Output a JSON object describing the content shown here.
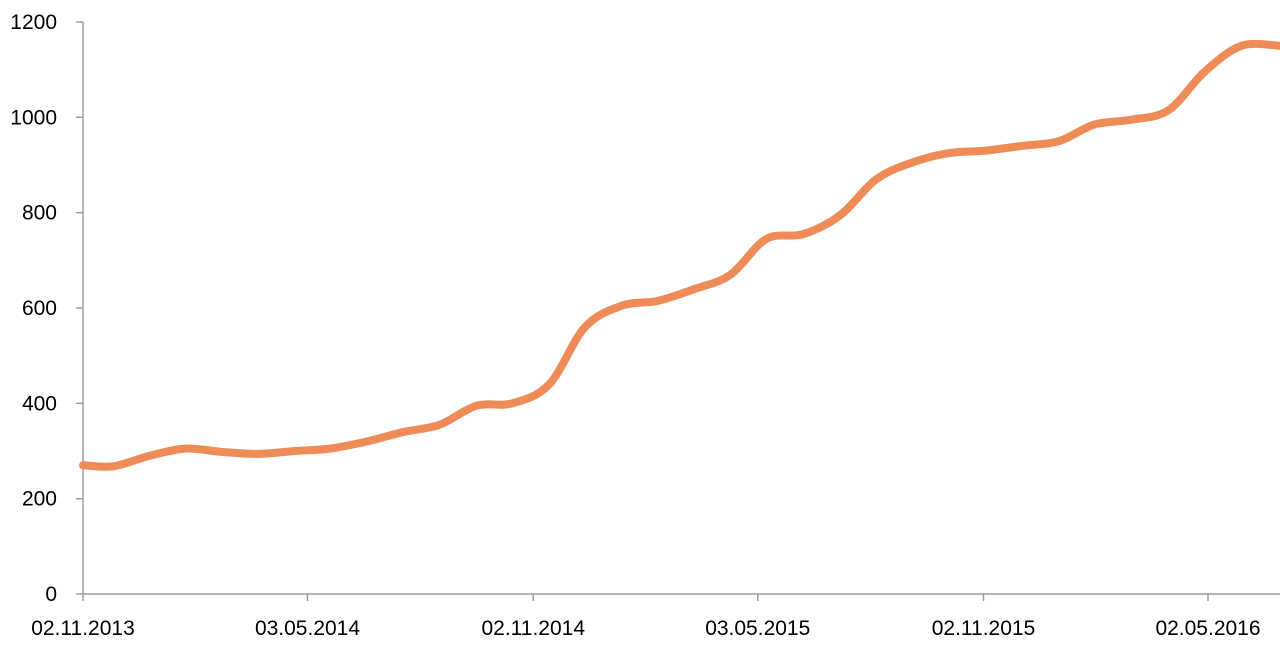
{
  "chart_data": {
    "type": "line",
    "title": "",
    "xlabel": "",
    "ylabel": "",
    "ylim": [
      0,
      1200
    ],
    "yticks": [
      0,
      200,
      400,
      600,
      800,
      1000,
      1200
    ],
    "y_tick_labels": [
      "0",
      "200",
      "400",
      "600",
      "800",
      "1000",
      "1200"
    ],
    "xlim": [
      "2013-11-02",
      "2016-07-01"
    ],
    "xticks": [
      "2013-11-02",
      "2014-05-03",
      "2014-11-02",
      "2015-05-03",
      "2015-11-02",
      "2016-05-02"
    ],
    "x_tick_labels": [
      "02.11.2013",
      "03.05.2014",
      "02.11.2014",
      "03.05.2015",
      "02.11.2015",
      "02.05.2016"
    ],
    "grid": false,
    "legend": "none",
    "series": [
      {
        "color": "#EE8B57",
        "x": [
          "2013-11-02",
          "2013-11-27",
          "2013-12-26",
          "2014-01-24",
          "2014-02-23",
          "2014-03-24",
          "2014-04-23",
          "2014-05-21",
          "2014-06-20",
          "2014-07-20",
          "2014-08-18",
          "2014-09-17",
          "2014-10-16",
          "2014-11-15",
          "2014-12-14",
          "2015-01-13",
          "2015-02-11",
          "2015-03-13",
          "2015-04-11",
          "2015-05-10",
          "2015-06-09",
          "2015-07-09",
          "2015-08-07",
          "2015-09-05",
          "2015-10-05",
          "2015-11-03",
          "2015-12-03",
          "2016-01-02",
          "2016-01-31",
          "2016-03-01",
          "2016-03-31",
          "2016-04-29",
          "2016-05-29",
          "2016-06-29"
        ],
        "values": [
          270,
          268,
          290,
          305,
          298,
          294,
          300,
          305,
          320,
          340,
          355,
          395,
          400,
          440,
          560,
          605,
          615,
          640,
          670,
          745,
          755,
          795,
          870,
          905,
          925,
          930,
          940,
          950,
          985,
          995,
          1015,
          1095,
          1150,
          1150
        ]
      }
    ]
  }
}
